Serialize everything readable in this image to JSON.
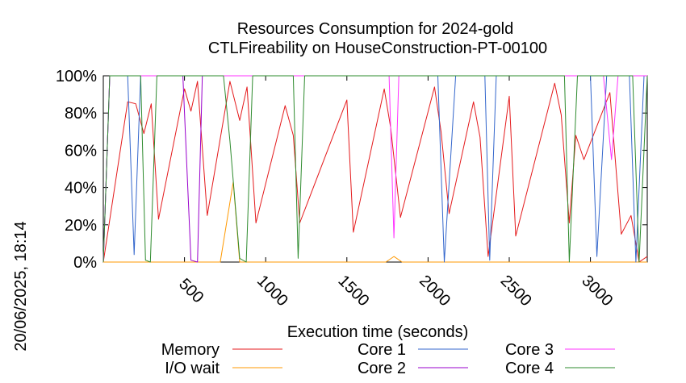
{
  "chart_data": {
    "type": "line",
    "title": "Resources Consumption for 2024-gold",
    "subtitle": "CTLFireability on HouseConstruction-PT-00100",
    "xlabel": "Execution time (seconds)",
    "ylabel": "",
    "side_label": "20/06/2025, 18:14",
    "xlim": [
      0,
      3350
    ],
    "ylim": [
      0,
      100
    ],
    "x_ticks": [
      {
        "value": 500,
        "label": "500"
      },
      {
        "value": 1000,
        "label": "1000"
      },
      {
        "value": 1500,
        "label": "1500"
      },
      {
        "value": 2000,
        "label": "2000"
      },
      {
        "value": 2500,
        "label": "2500"
      },
      {
        "value": 3000,
        "label": "3000"
      }
    ],
    "y_ticks": [
      {
        "value": 0,
        "label": "0%"
      },
      {
        "value": 20,
        "label": "20%"
      },
      {
        "value": 40,
        "label": "40%"
      },
      {
        "value": 60,
        "label": "60%"
      },
      {
        "value": 80,
        "label": "80%"
      },
      {
        "value": 100,
        "label": "100%"
      }
    ],
    "legend_placement": "bottom",
    "series": [
      {
        "name": "Memory",
        "color": "#e41a1c",
        "points": [
          [
            0,
            0
          ],
          [
            150,
            86
          ],
          [
            200,
            85
          ],
          [
            250,
            69
          ],
          [
            295,
            85
          ],
          [
            340,
            23
          ],
          [
            500,
            93
          ],
          [
            540,
            81
          ],
          [
            580,
            97
          ],
          [
            640,
            25
          ],
          [
            780,
            97
          ],
          [
            840,
            76
          ],
          [
            885,
            94
          ],
          [
            940,
            21
          ],
          [
            1120,
            84
          ],
          [
            1170,
            68
          ],
          [
            1210,
            21
          ],
          [
            1500,
            87
          ],
          [
            1540,
            16
          ],
          [
            1730,
            93
          ],
          [
            1770,
            72
          ],
          [
            1830,
            24
          ],
          [
            2040,
            94
          ],
          [
            2080,
            70
          ],
          [
            2130,
            26
          ],
          [
            2280,
            86
          ],
          [
            2320,
            67
          ],
          [
            2370,
            3
          ],
          [
            2500,
            89
          ],
          [
            2540,
            14
          ],
          [
            2780,
            96
          ],
          [
            2820,
            79
          ],
          [
            2870,
            21
          ],
          [
            2910,
            68
          ],
          [
            2960,
            55
          ],
          [
            3120,
            91
          ],
          [
            3190,
            15
          ],
          [
            3250,
            25
          ],
          [
            3300,
            0
          ],
          [
            3350,
            3
          ]
        ]
      },
      {
        "name": "I/O wait",
        "color": "#ff9900",
        "points": [
          [
            0,
            0
          ],
          [
            720,
            0
          ],
          [
            800,
            43
          ],
          [
            840,
            0
          ],
          [
            1740,
            0
          ],
          [
            1790,
            3
          ],
          [
            1840,
            0
          ],
          [
            3350,
            0
          ]
        ]
      },
      {
        "name": "Core 1",
        "color": "#3366cc",
        "points": [
          [
            0,
            0
          ],
          [
            40,
            100
          ],
          [
            150,
            100
          ],
          [
            190,
            4
          ],
          [
            230,
            100
          ],
          [
            2060,
            100
          ],
          [
            2100,
            0
          ],
          [
            2170,
            100
          ],
          [
            2350,
            100
          ],
          [
            2380,
            1
          ],
          [
            2420,
            100
          ],
          [
            3000,
            100
          ],
          [
            3040,
            3
          ],
          [
            3100,
            100
          ],
          [
            3240,
            100
          ],
          [
            3280,
            0
          ],
          [
            3330,
            100
          ]
        ]
      },
      {
        "name": "Core 2",
        "color": "#9900cc",
        "points": [
          [
            0,
            0
          ],
          [
            40,
            100
          ],
          [
            490,
            100
          ],
          [
            540,
            1
          ],
          [
            580,
            0
          ],
          [
            610,
            100
          ],
          [
            3350,
            100
          ]
        ]
      },
      {
        "name": "Core 3",
        "color": "#ff33ff",
        "points": [
          [
            0,
            0
          ],
          [
            40,
            100
          ],
          [
            1760,
            100
          ],
          [
            1790,
            13
          ],
          [
            1820,
            100
          ],
          [
            3080,
            100
          ],
          [
            3130,
            55
          ],
          [
            3170,
            100
          ],
          [
            3350,
            100
          ]
        ]
      },
      {
        "name": "Core 4",
        "color": "#2e8b2e",
        "points": [
          [
            0,
            0
          ],
          [
            40,
            100
          ],
          [
            230,
            100
          ],
          [
            260,
            1
          ],
          [
            290,
            0
          ],
          [
            330,
            100
          ],
          [
            740,
            100
          ],
          [
            780,
            65
          ],
          [
            840,
            2
          ],
          [
            880,
            0
          ],
          [
            920,
            100
          ],
          [
            1170,
            100
          ],
          [
            1200,
            2
          ],
          [
            1240,
            100
          ],
          [
            2840,
            100
          ],
          [
            2870,
            0
          ],
          [
            2920,
            100
          ],
          [
            3260,
            100
          ],
          [
            3300,
            0
          ],
          [
            3350,
            100
          ]
        ]
      }
    ]
  }
}
